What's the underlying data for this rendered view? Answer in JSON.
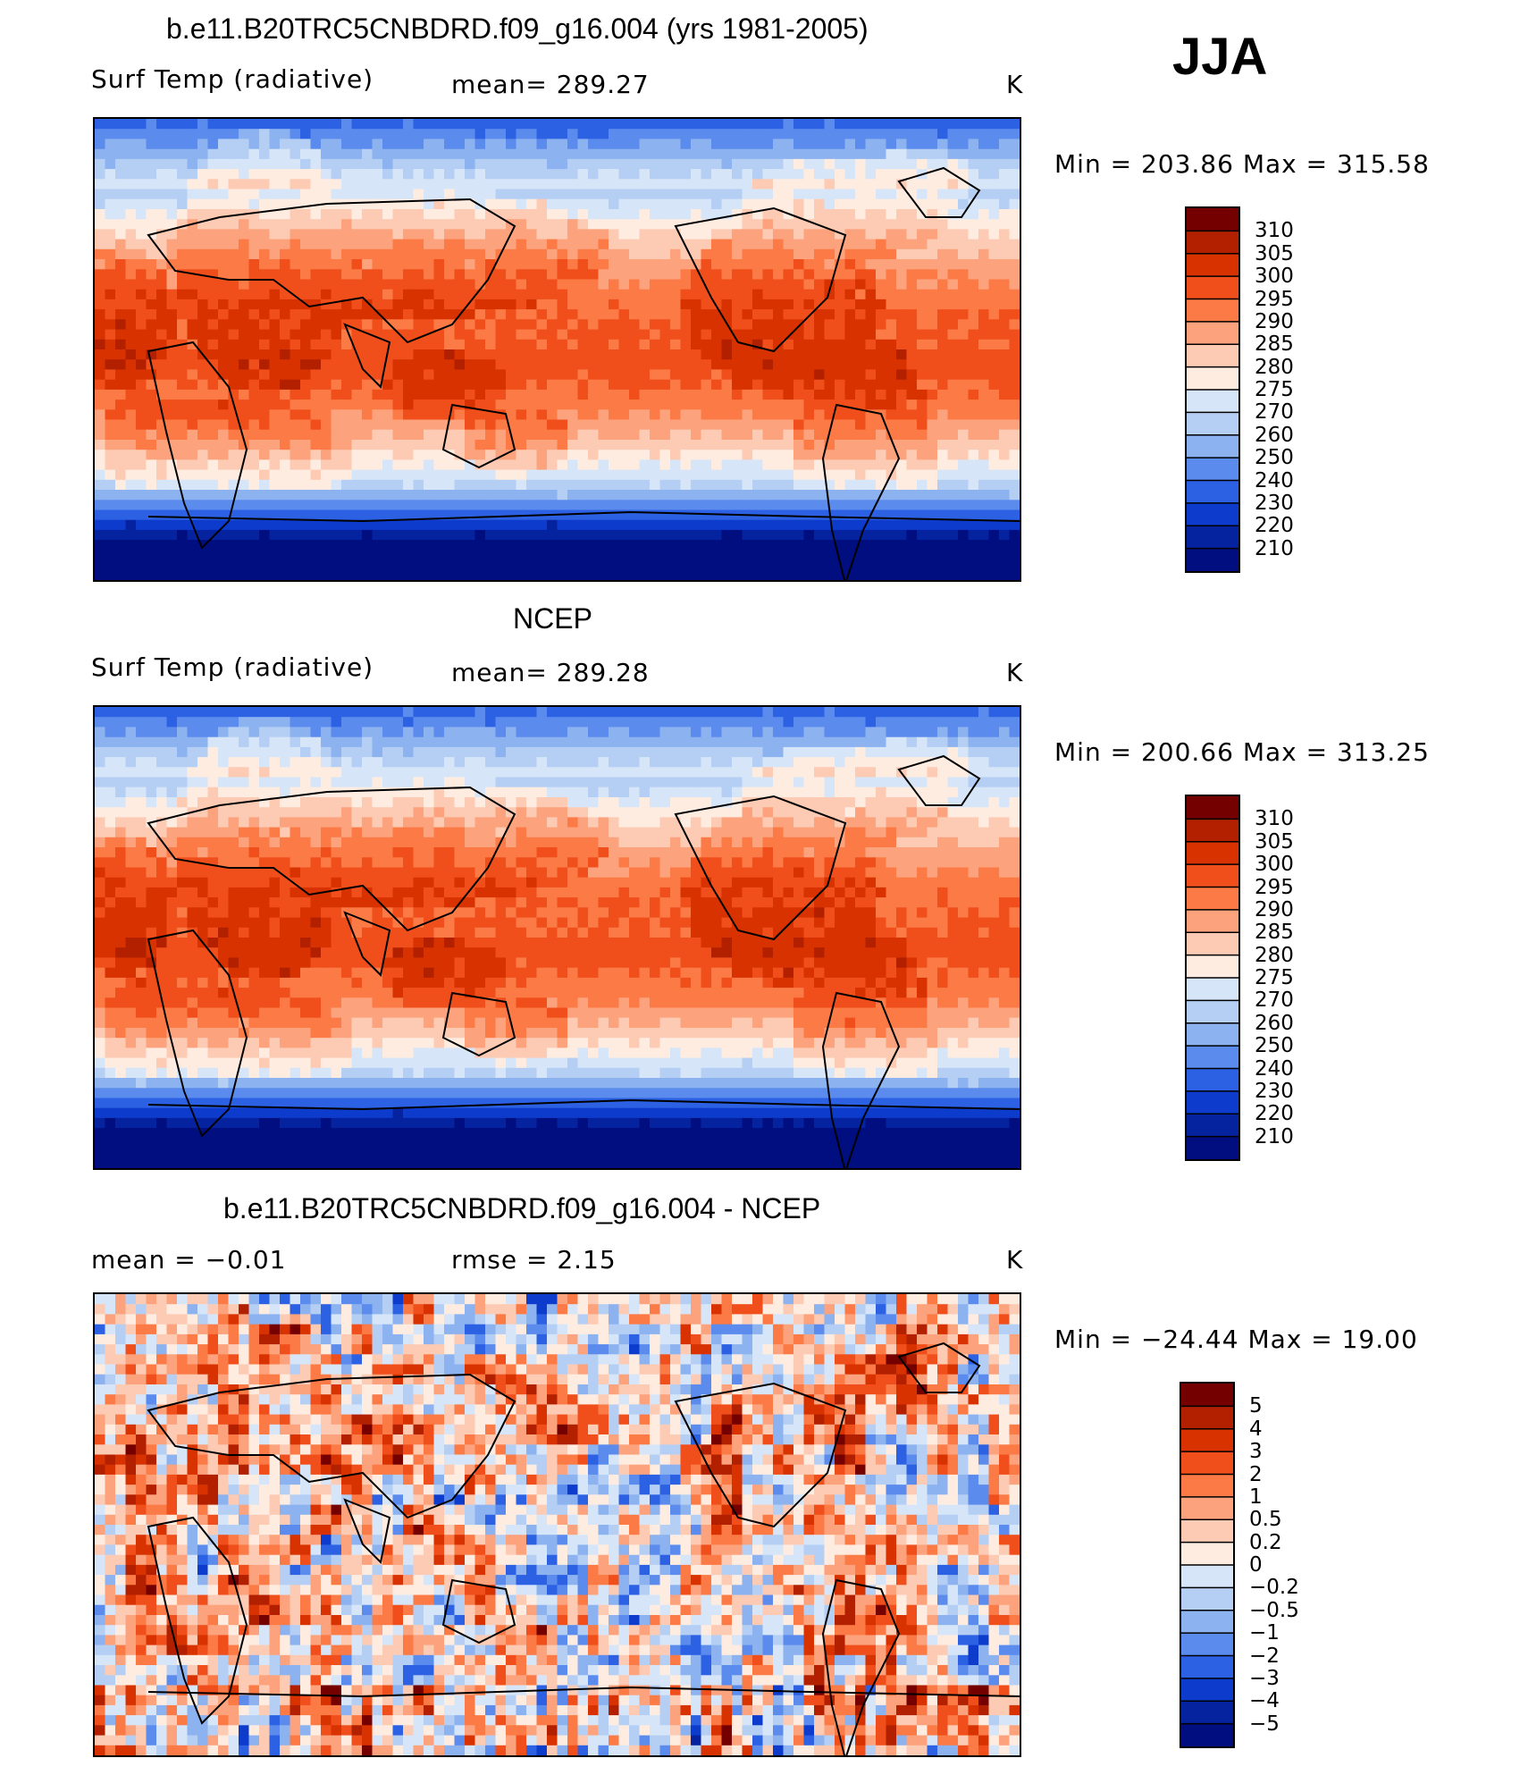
{
  "season": "JJA",
  "panels": [
    {
      "title": "b.e11.B20TRC5CNBDRD.f09_g16.004 (yrs 1981-2005)",
      "left_label": "Surf Temp (radiative)",
      "mid_label": "mean= 289.27",
      "units": "K",
      "minmax": "Min = 203.86 Max = 315.58",
      "colorbar": {
        "levels": [
          "310",
          "305",
          "300",
          "295",
          "290",
          "285",
          "280",
          "275",
          "270",
          "260",
          "250",
          "240",
          "230",
          "220",
          "210"
        ],
        "colors": [
          "#750000",
          "#b22000",
          "#d83200",
          "#f04f1c",
          "#fb7a45",
          "#fca27d",
          "#fdcab3",
          "#feece1",
          "#d6e6f8",
          "#b5cff4",
          "#8cb2f0",
          "#5a8bed",
          "#2c61e3",
          "#0d3bcc",
          "#06239f",
          "#000e80"
        ]
      },
      "map_kind": "model"
    },
    {
      "title": "NCEP",
      "left_label": "Surf Temp (radiative)",
      "mid_label": "mean= 289.28",
      "units": "K",
      "minmax": "Min = 200.66 Max = 313.25",
      "colorbar": {
        "levels": [
          "310",
          "305",
          "300",
          "295",
          "290",
          "285",
          "280",
          "275",
          "270",
          "260",
          "250",
          "240",
          "230",
          "220",
          "210"
        ],
        "colors": [
          "#750000",
          "#b22000",
          "#d83200",
          "#f04f1c",
          "#fb7a45",
          "#fca27d",
          "#fdcab3",
          "#feece1",
          "#d6e6f8",
          "#b5cff4",
          "#8cb2f0",
          "#5a8bed",
          "#2c61e3",
          "#0d3bcc",
          "#06239f",
          "#000e80"
        ]
      },
      "map_kind": "obs"
    },
    {
      "title": "b.e11.B20TRC5CNBDRD.f09_g16.004 - NCEP",
      "left_label": "mean =  −0.01",
      "mid_label": "rmse =    2.15",
      "units": "K",
      "minmax": "Min = −24.44 Max =  19.00",
      "colorbar": {
        "levels": [
          "5",
          "4",
          "3",
          "2",
          "1",
          "0.5",
          "0.2",
          "0",
          "−0.2",
          "−0.5",
          "−1",
          "−2",
          "−3",
          "−4",
          "−5"
        ],
        "colors": [
          "#750000",
          "#b22000",
          "#d83200",
          "#f04f1c",
          "#fb7a45",
          "#fca27d",
          "#fdcab3",
          "#feece1",
          "#d6e6f8",
          "#b5cff4",
          "#8cb2f0",
          "#5a8bed",
          "#2c61e3",
          "#0d3bcc",
          "#06239f",
          "#000e80"
        ]
      },
      "map_kind": "diff"
    }
  ]
}
